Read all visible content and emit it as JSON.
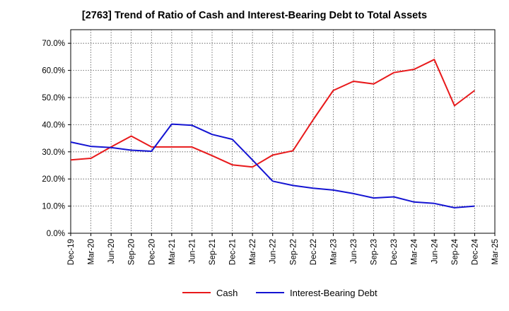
{
  "chart_data": {
    "type": "line",
    "title": "[2763]  Trend of Ratio of Cash and Interest-Bearing Debt to Total Assets",
    "xlabel": "",
    "ylabel": "",
    "x": [
      "Dec-19",
      "Mar-20",
      "Jun-20",
      "Sep-20",
      "Dec-20",
      "Mar-21",
      "Jun-21",
      "Sep-21",
      "Dec-21",
      "Mar-22",
      "Jun-22",
      "Sep-22",
      "Dec-22",
      "Mar-23",
      "Jun-23",
      "Sep-23",
      "Dec-23",
      "Mar-24",
      "Jun-24",
      "Sep-24",
      "Dec-24",
      "Mar-25"
    ],
    "ylim": [
      0,
      75
    ],
    "yticks": [
      "0.0%",
      "10.0%",
      "20.0%",
      "30.0%",
      "40.0%",
      "50.0%",
      "60.0%",
      "70.0%"
    ],
    "ytick_values": [
      0,
      10,
      20,
      30,
      40,
      50,
      60,
      70
    ],
    "grid": true,
    "legend_position": "bottom",
    "series": [
      {
        "name": "Cash",
        "color": "#e8191b",
        "values": [
          27.0,
          27.6,
          31.8,
          35.8,
          31.8,
          31.8,
          31.8,
          28.6,
          25.2,
          24.4,
          28.8,
          30.4,
          41.8,
          52.6,
          56.0,
          55.0,
          59.2,
          60.4,
          64.0,
          47.0,
          52.6,
          null
        ]
      },
      {
        "name": "Interest-Bearing Debt",
        "color": "#1414d2",
        "values": [
          33.6,
          32.0,
          31.6,
          30.6,
          30.2,
          40.2,
          39.8,
          36.4,
          34.6,
          27.0,
          19.2,
          17.6,
          16.6,
          15.9,
          14.6,
          13.0,
          13.4,
          11.5,
          11.0,
          9.4,
          10.0,
          null
        ]
      }
    ]
  }
}
